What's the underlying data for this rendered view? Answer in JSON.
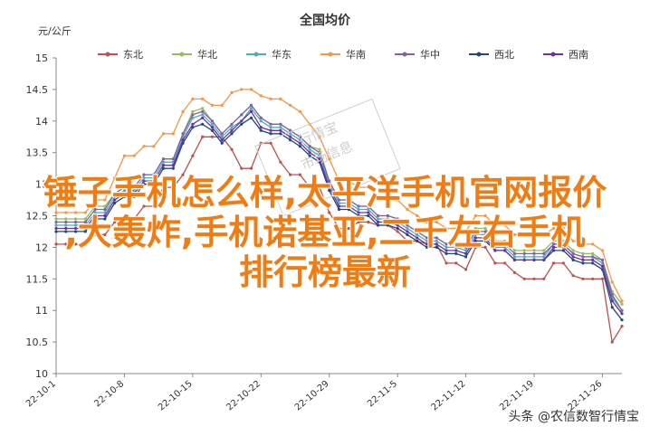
{
  "chart_data": {
    "type": "line",
    "title": "全国均价",
    "unit": "元/公斤",
    "ylim": [
      10,
      15
    ],
    "yticks": [
      "10",
      "10.5",
      "11",
      "11.5",
      "12",
      "12.5",
      "13",
      "13.5",
      "14",
      "14.5",
      "15"
    ],
    "x": [
      "22-10-1",
      "22-10-2",
      "22-10-3",
      "22-10-4",
      "22-10-5",
      "22-10-6",
      "22-10-7",
      "22-10-8",
      "22-10-9",
      "22-10-10",
      "22-10-11",
      "22-10-12",
      "22-10-13",
      "22-10-14",
      "22-10-15",
      "22-10-16",
      "22-10-17",
      "22-10-18",
      "22-10-19",
      "22-10-20",
      "22-10-21",
      "22-10-22",
      "22-10-23",
      "22-10-24",
      "22-10-25",
      "22-10-26",
      "22-10-27",
      "22-10-28",
      "22-10-29",
      "22-10-30",
      "22-10-31",
      "22-11-1",
      "22-11-2",
      "22-11-3",
      "22-11-4",
      "22-11-5",
      "22-11-6",
      "22-11-7",
      "22-11-8",
      "22-11-9",
      "22-11-10",
      "22-11-11",
      "22-11-12",
      "22-11-13",
      "22-11-14",
      "22-11-15",
      "22-11-16",
      "22-11-17",
      "22-11-18",
      "22-11-19",
      "22-11-20",
      "22-11-21",
      "22-11-22",
      "22-11-23",
      "22-11-24",
      "22-11-25",
      "22-11-26",
      "22-11-27",
      "22-11-28"
    ],
    "xtick_labels": [
      "22-10-1",
      "22-10-8",
      "22-10-15",
      "22-10-22",
      "22-10-29",
      "22-11-5",
      "22-11-12",
      "22-11-19",
      "22-11-26"
    ],
    "xtick_index": [
      0,
      7,
      14,
      21,
      28,
      35,
      42,
      49,
      56
    ],
    "legend_position": "top",
    "series": [
      {
        "name": "东北",
        "color": "#c0504d",
        "values": [
          12.05,
          12.05,
          12.05,
          12.05,
          12.2,
          12.2,
          12.4,
          12.45,
          12.45,
          12.65,
          12.65,
          12.95,
          12.95,
          13.15,
          13.45,
          13.75,
          13.75,
          13.75,
          13.55,
          13.25,
          13.25,
          13.65,
          13.65,
          13.35,
          13.15,
          13.15,
          12.95,
          12.95,
          12.55,
          12.3,
          12.3,
          12.4,
          12.4,
          12.35,
          12.35,
          12.25,
          12.1,
          12.1,
          12.05,
          12.05,
          11.75,
          11.75,
          11.65,
          12.0,
          12.0,
          11.75,
          11.75,
          11.6,
          11.5,
          11.5,
          11.5,
          11.75,
          11.75,
          11.55,
          11.5,
          11.5,
          11.5,
          10.5,
          10.75
        ]
      },
      {
        "name": "华北",
        "color": "#9bbb59",
        "values": [
          12.45,
          12.45,
          12.45,
          12.45,
          12.65,
          12.65,
          12.85,
          12.95,
          12.95,
          13.15,
          13.15,
          13.4,
          13.4,
          13.8,
          14.15,
          14.2,
          14.0,
          13.8,
          13.95,
          14.1,
          14.25,
          14.05,
          13.95,
          13.95,
          13.85,
          13.75,
          13.6,
          13.55,
          13.05,
          12.75,
          12.75,
          12.65,
          12.65,
          12.5,
          12.5,
          12.45,
          12.35,
          12.25,
          12.15,
          12.15,
          12.05,
          12.05,
          12.05,
          12.3,
          12.3,
          12.1,
          12.1,
          11.95,
          11.95,
          11.95,
          11.95,
          12.1,
          12.1,
          11.95,
          11.9,
          11.9,
          11.8,
          11.3,
          11.1
        ]
      },
      {
        "name": "华东",
        "color": "#4bacc6",
        "values": [
          12.35,
          12.35,
          12.35,
          12.35,
          12.55,
          12.55,
          12.8,
          12.9,
          12.9,
          13.1,
          13.1,
          13.35,
          13.35,
          13.75,
          14.05,
          14.1,
          13.95,
          13.75,
          13.9,
          14.0,
          14.2,
          14.0,
          13.9,
          13.9,
          13.8,
          13.7,
          13.55,
          13.45,
          13.0,
          12.7,
          12.7,
          12.6,
          12.6,
          12.45,
          12.45,
          12.4,
          12.3,
          12.2,
          12.1,
          12.1,
          12.0,
          12.0,
          11.95,
          12.2,
          12.2,
          12.0,
          12.0,
          11.85,
          11.85,
          11.85,
          11.85,
          12.05,
          12.05,
          11.9,
          11.85,
          11.85,
          11.75,
          11.2,
          11.0
        ]
      },
      {
        "name": "华南",
        "color": "#f79646",
        "values": [
          12.55,
          12.55,
          12.55,
          12.55,
          12.75,
          12.75,
          13.1,
          13.45,
          13.45,
          13.6,
          13.6,
          13.8,
          13.8,
          14.15,
          14.35,
          14.35,
          14.25,
          14.25,
          14.45,
          14.5,
          14.5,
          14.4,
          14.35,
          14.35,
          14.25,
          14.15,
          13.95,
          13.75,
          13.4,
          13.05,
          13.05,
          12.95,
          12.95,
          12.8,
          12.8,
          12.75,
          12.6,
          12.5,
          12.4,
          12.4,
          12.3,
          12.3,
          12.25,
          12.5,
          12.5,
          12.35,
          12.35,
          12.2,
          12.2,
          12.2,
          12.2,
          12.3,
          12.3,
          12.1,
          12.05,
          12.05,
          11.95,
          11.45,
          11.15
        ]
      },
      {
        "name": "华中",
        "color": "#8064a2",
        "values": [
          12.4,
          12.4,
          12.4,
          12.4,
          12.6,
          12.6,
          12.85,
          12.95,
          12.95,
          13.15,
          13.15,
          13.4,
          13.4,
          13.8,
          14.1,
          14.15,
          14.0,
          13.8,
          13.95,
          14.1,
          14.25,
          14.05,
          13.95,
          13.95,
          13.85,
          13.75,
          13.6,
          13.5,
          13.05,
          12.75,
          12.75,
          12.65,
          12.65,
          12.5,
          12.5,
          12.45,
          12.35,
          12.25,
          12.15,
          12.15,
          12.05,
          12.05,
          12.0,
          12.25,
          12.25,
          12.05,
          12.05,
          11.9,
          11.9,
          11.9,
          11.9,
          12.05,
          12.05,
          11.9,
          11.85,
          11.85,
          11.8,
          11.25,
          11.0
        ]
      },
      {
        "name": "西北",
        "color": "#1f497d",
        "values": [
          12.25,
          12.25,
          12.25,
          12.25,
          12.45,
          12.45,
          12.7,
          12.8,
          12.8,
          13.0,
          13.0,
          13.25,
          13.25,
          13.65,
          13.9,
          13.95,
          13.85,
          13.65,
          13.8,
          13.95,
          14.05,
          13.85,
          13.8,
          13.8,
          13.7,
          13.6,
          13.45,
          13.35,
          12.9,
          12.6,
          12.6,
          12.5,
          12.5,
          12.35,
          12.35,
          12.3,
          12.2,
          12.1,
          12.0,
          12.0,
          11.9,
          11.9,
          11.85,
          12.1,
          12.1,
          11.95,
          11.95,
          11.8,
          11.8,
          11.8,
          11.8,
          11.95,
          11.95,
          11.8,
          11.75,
          11.75,
          11.65,
          11.05,
          10.85
        ]
      },
      {
        "name": "西南",
        "color": "#7030a0",
        "values": [
          12.3,
          12.3,
          12.3,
          12.3,
          12.5,
          12.5,
          12.75,
          12.85,
          12.85,
          13.05,
          13.05,
          13.3,
          13.3,
          13.7,
          13.95,
          14.05,
          13.9,
          13.7,
          13.85,
          14.0,
          14.15,
          13.9,
          13.85,
          13.85,
          13.75,
          13.65,
          13.5,
          13.4,
          12.95,
          12.65,
          12.65,
          12.55,
          12.55,
          12.4,
          12.4,
          12.35,
          12.25,
          12.15,
          12.05,
          12.05,
          11.95,
          11.95,
          11.9,
          12.15,
          12.15,
          11.95,
          11.95,
          11.8,
          11.8,
          11.8,
          11.8,
          12.0,
          12.0,
          11.85,
          11.8,
          11.8,
          11.7,
          11.15,
          10.95
        ]
      }
    ]
  },
  "overlay": {
    "line1": "锤子手机怎么样,太平洋手机官网报价",
    "line2": ",大轰炸,手机诺基亚,二千左右手机",
    "line3": "排行榜最新"
  },
  "watermark": {
    "line1": "行情宝",
    "line2": "市场信息"
  },
  "credit": "头条 @农信数智行情宝"
}
